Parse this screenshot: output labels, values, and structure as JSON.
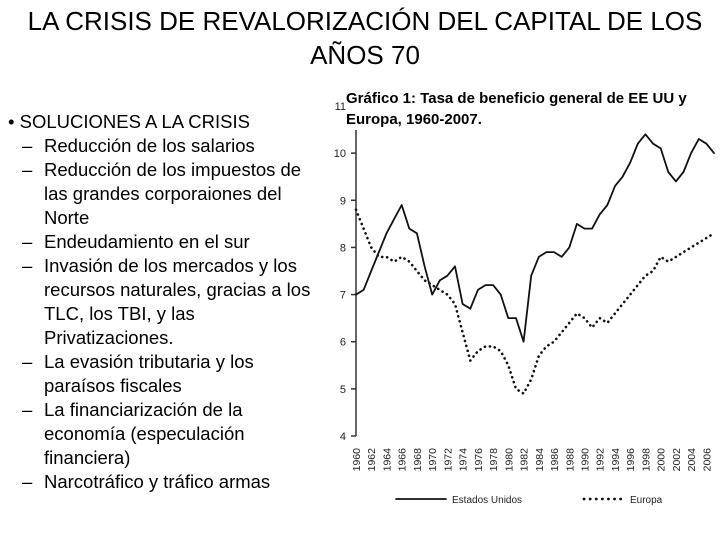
{
  "slide": {
    "title": "LA CRISIS DE REVALORIZACIÓN DEL CAPITAL DE LOS AÑOS 70",
    "bullet_heading": "SOLUCIONES A LA CRISIS",
    "bullet_marker": "•",
    "sub_marker": "–",
    "items": [
      "Reducción de los salarios",
      "Reducción de los impuestos de las grandes corporaiones  del  Norte",
      "Endeudamiento en el sur",
      "Invasión de los mercados y los recursos naturales, gracias a los TLC, los TBI, y las Privatizaciones.",
      "La evasión tributaria y los paraísos fiscales",
      "La financiarización de la economía (especulación financiera)",
      "Narcotráfico y tráfico armas"
    ]
  },
  "chart_data": {
    "type": "line",
    "title": "Gráfico 1: Tasa de beneficio general de EE UU y Europa, 1960-2007.",
    "xlabel": "",
    "ylabel": "",
    "xlim": [
      1960,
      2007
    ],
    "ylim": [
      4,
      11
    ],
    "yticks": [
      "4",
      "5",
      "6",
      "7",
      "8",
      "9",
      "10",
      "11"
    ],
    "xticks": [
      "1960",
      "1962",
      "1964",
      "1966",
      "1968",
      "1970",
      "1972",
      "1974",
      "1976",
      "1978",
      "1980",
      "1982",
      "1984",
      "1986",
      "1988",
      "1990",
      "1992",
      "1994",
      "1996",
      "1998",
      "2000",
      "2002",
      "2004",
      "2006"
    ],
    "grid": false,
    "legend_position": "bottom",
    "x": [
      1960,
      1961,
      1962,
      1963,
      1964,
      1965,
      1966,
      1967,
      1968,
      1969,
      1970,
      1971,
      1972,
      1973,
      1974,
      1975,
      1976,
      1977,
      1978,
      1979,
      1980,
      1981,
      1982,
      1983,
      1984,
      1985,
      1986,
      1987,
      1988,
      1989,
      1990,
      1991,
      1992,
      1993,
      1994,
      1995,
      1996,
      1997,
      1998,
      1999,
      2000,
      2001,
      2002,
      2003,
      2004,
      2005,
      2006,
      2007
    ],
    "series": [
      {
        "name": "Estados Unidos",
        "style": "solid",
        "color": "#111111",
        "values": [
          7.0,
          7.1,
          7.5,
          7.9,
          8.3,
          8.6,
          8.9,
          8.4,
          8.3,
          7.6,
          7.0,
          7.3,
          7.4,
          7.6,
          6.8,
          6.7,
          7.1,
          7.2,
          7.2,
          7.0,
          6.5,
          6.5,
          6.0,
          7.4,
          7.8,
          7.9,
          7.9,
          7.8,
          8.0,
          8.5,
          8.4,
          8.4,
          8.7,
          8.9,
          9.3,
          9.5,
          9.8,
          10.2,
          10.4,
          10.2,
          10.1,
          9.6,
          9.4,
          9.6,
          10.0,
          10.3,
          10.2,
          10.0
        ]
      },
      {
        "name": "Europa",
        "style": "dotted",
        "color": "#111111",
        "values": [
          8.8,
          8.4,
          8.0,
          7.8,
          7.8,
          7.7,
          7.8,
          7.7,
          7.5,
          7.3,
          7.2,
          7.1,
          7.0,
          6.8,
          6.2,
          5.6,
          5.8,
          5.9,
          5.9,
          5.8,
          5.5,
          5.0,
          4.9,
          5.2,
          5.7,
          5.9,
          6.0,
          6.2,
          6.4,
          6.6,
          6.5,
          6.3,
          6.5,
          6.4,
          6.6,
          6.8,
          7.0,
          7.2,
          7.4,
          7.5,
          7.8,
          7.7,
          7.8,
          7.9,
          8.0,
          8.1,
          8.2,
          8.3
        ]
      }
    ]
  }
}
